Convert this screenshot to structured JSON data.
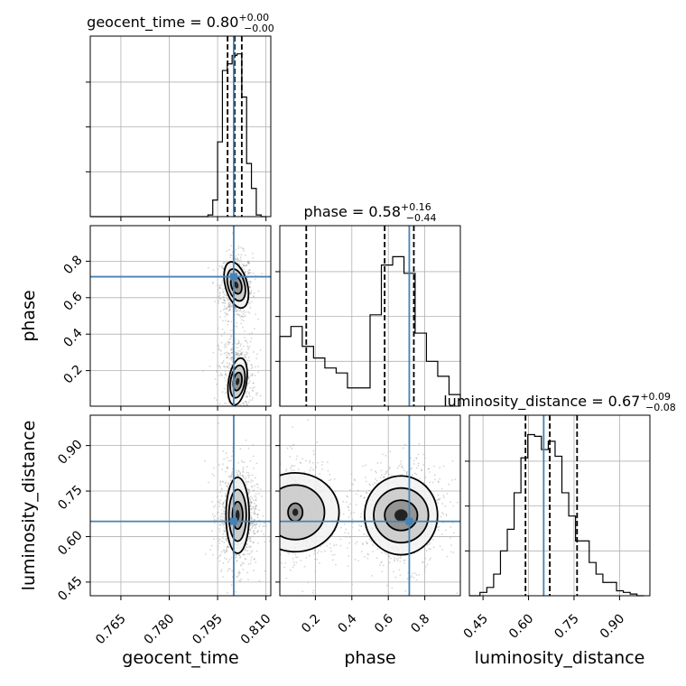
{
  "chart_data": {
    "type": "corner",
    "parameters": [
      "geocent_time",
      "phase",
      "luminosity_distance"
    ],
    "truths": {
      "geocent_time": 0.8,
      "phase": 0.715,
      "luminosity_distance": 0.65
    },
    "colors": {
      "truth": "#4682b4",
      "hist": "#000000",
      "grid": "#b0b0b0",
      "quantile": "#000000"
    },
    "grid": true,
    "titles": {
      "geocent_time": {
        "name": "geocent_time",
        "value": "0.80",
        "plus": "+0.00",
        "minus": "−0.00"
      },
      "phase": {
        "name": "phase",
        "value": "0.58",
        "plus": "+0.16",
        "minus": "−0.44"
      },
      "luminosity_distance": {
        "name": "luminosity_distance",
        "value": "0.67",
        "plus": "+0.09",
        "minus": "−0.08"
      }
    },
    "axis_labels": {
      "x": [
        "geocent_time",
        "phase",
        "luminosity_distance"
      ],
      "y": [
        "phase",
        "luminosity_distance"
      ]
    },
    "ticks": {
      "geocent_time": [
        0.765,
        0.78,
        0.795,
        0.81
      ],
      "geocent_time_labels": [
        "0.765",
        "0.780",
        "0.795",
        "0.810"
      ],
      "phase": [
        0.2,
        0.4,
        0.6,
        0.8
      ],
      "phase_labels": [
        "0.2",
        "0.4",
        "0.6",
        "0.8"
      ],
      "luminosity_distance": [
        0.45,
        0.6,
        0.75,
        0.9
      ],
      "luminosity_distance_labels": [
        "0.45",
        "0.60",
        "0.75",
        "0.90"
      ]
    },
    "ranges": {
      "geocent_time": [
        0.7555,
        0.8115
      ],
      "phase": [
        0.005,
        0.995
      ],
      "luminosity_distance": [
        0.405,
        1.0
      ]
    },
    "histograms": {
      "geocent_time": {
        "edges": [
          0.792,
          0.7935,
          0.795,
          0.7965,
          0.798,
          0.7995,
          0.801,
          0.8025,
          0.804,
          0.8055,
          0.807,
          0.8085,
          0.81
        ],
        "counts": [
          0.01,
          0.1,
          0.45,
          0.88,
          0.92,
          0.97,
          0.98,
          0.72,
          0.32,
          0.17,
          0.01,
          0.0
        ]
      },
      "phase": {
        "edges": [
          0.005,
          0.066,
          0.128,
          0.19,
          0.252,
          0.314,
          0.376,
          0.438,
          0.5,
          0.562,
          0.624,
          0.686,
          0.747,
          0.809,
          0.871,
          0.933,
          0.995
        ],
        "counts": [
          0.42,
          0.48,
          0.36,
          0.29,
          0.23,
          0.2,
          0.11,
          0.11,
          0.55,
          0.85,
          0.9,
          0.8,
          0.44,
          0.27,
          0.18,
          0.07
        ]
      },
      "luminosity_distance": {
        "edges": [
          0.44,
          0.4625,
          0.485,
          0.5075,
          0.53,
          0.5525,
          0.575,
          0.5975,
          0.62,
          0.6425,
          0.665,
          0.6875,
          0.71,
          0.7325,
          0.755,
          0.7775,
          0.8,
          0.8225,
          0.845,
          0.8675,
          0.89,
          0.9125,
          0.935,
          0.9575,
          0.98
        ],
        "counts": [
          0.02,
          0.05,
          0.13,
          0.27,
          0.4,
          0.62,
          0.83,
          0.97,
          0.96,
          0.88,
          0.93,
          0.84,
          0.62,
          0.48,
          0.33,
          0.33,
          0.2,
          0.13,
          0.08,
          0.08,
          0.03,
          0.02,
          0.01,
          0.0
        ]
      }
    },
    "quantiles": {
      "geocent_time": [
        0.7981,
        0.8003,
        0.8025
      ],
      "phase": [
        0.15,
        0.58,
        0.74
      ],
      "luminosity_distance": [
        0.59,
        0.67,
        0.76
      ]
    },
    "scatter_clusters": {
      "geocent_time|phase": [
        {
          "mx": 0.8008,
          "my": 0.66,
          "sx": 0.0025,
          "sy": 0.09,
          "n": 700
        },
        {
          "mx": 0.801,
          "my": 0.18,
          "sx": 0.0028,
          "sy": 0.11,
          "n": 450
        }
      ],
      "geocent_time|luminosity_distance": [
        {
          "mx": 0.8012,
          "my": 0.67,
          "sx": 0.003,
          "sy": 0.085,
          "n": 1100
        }
      ],
      "phase|luminosity_distance": [
        {
          "mx": 0.12,
          "my": 0.68,
          "sx": 0.11,
          "sy": 0.085,
          "n": 800
        },
        {
          "mx": 0.67,
          "my": 0.67,
          "sx": 0.12,
          "sy": 0.085,
          "n": 900
        }
      ]
    },
    "contours": {
      "geocent_time|phase": [
        {
          "cx": 0.8008,
          "cy": 0.67,
          "ry": [
            0.05,
            0.09,
            0.13
          ],
          "rx": [
            0.0016,
            0.0026,
            0.0034
          ],
          "tilt": -0.5
        },
        {
          "cx": 0.8012,
          "cy": 0.14,
          "ry": [
            0.05,
            0.09,
            0.13
          ],
          "rx": [
            0.0013,
            0.0022,
            0.0028
          ],
          "tilt": 0.3
        }
      ],
      "geocent_time|luminosity_distance": [
        {
          "cx": 0.8012,
          "cy": 0.67,
          "ry": [
            0.045,
            0.085,
            0.125
          ],
          "rx": [
            0.0016,
            0.0027,
            0.0036
          ],
          "tilt": 0
        }
      ],
      "phase|luminosity_distance": [
        {
          "cx": 0.09,
          "cy": 0.68,
          "ry": [
            0.03,
            0.09,
            0.13
          ],
          "rx": [
            0.04,
            0.16,
            0.24
          ],
          "tilt": 0
        },
        {
          "cx": 0.67,
          "cy": 0.67,
          "ry": [
            0.05,
            0.09,
            0.13
          ],
          "rx": [
            0.09,
            0.15,
            0.2
          ],
          "tilt": 0
        }
      ]
    }
  }
}
